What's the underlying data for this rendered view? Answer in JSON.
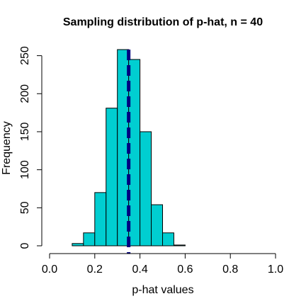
{
  "chart_data": {
    "type": "bar",
    "subtype": "histogram",
    "title": "Sampling distribution of p-hat, n = 40",
    "xlabel": "p-hat values",
    "ylabel": "Frequency",
    "xlim": [
      0,
      1
    ],
    "ylim": [
      0,
      258
    ],
    "x_ticks": [
      0,
      0.2,
      0.4,
      0.6,
      0.8,
      1
    ],
    "x_tick_labels": [
      "0.0",
      "0.2",
      "0.4",
      "0.6",
      "0.8",
      "1.0"
    ],
    "y_ticks": [
      0,
      50,
      100,
      150,
      200,
      250
    ],
    "y_tick_labels": [
      "0",
      "50",
      "100",
      "150",
      "200",
      "250"
    ],
    "bins": [
      {
        "x0": 0.1,
        "x1": 0.15,
        "count": 3
      },
      {
        "x0": 0.15,
        "x1": 0.2,
        "count": 17
      },
      {
        "x0": 0.2,
        "x1": 0.25,
        "count": 70
      },
      {
        "x0": 0.25,
        "x1": 0.3,
        "count": 181
      },
      {
        "x0": 0.3,
        "x1": 0.35,
        "count": 258
      },
      {
        "x0": 0.35,
        "x1": 0.4,
        "count": 245
      },
      {
        "x0": 0.4,
        "x1": 0.45,
        "count": 150
      },
      {
        "x0": 0.45,
        "x1": 0.5,
        "count": 54
      },
      {
        "x0": 0.5,
        "x1": 0.55,
        "count": 17
      },
      {
        "x0": 0.55,
        "x1": 0.6,
        "count": 1
      }
    ],
    "reference_line": {
      "x": 0.35,
      "style": "dashed",
      "color": "#000080"
    },
    "bar_color": "#00CED1",
    "grid": false
  }
}
